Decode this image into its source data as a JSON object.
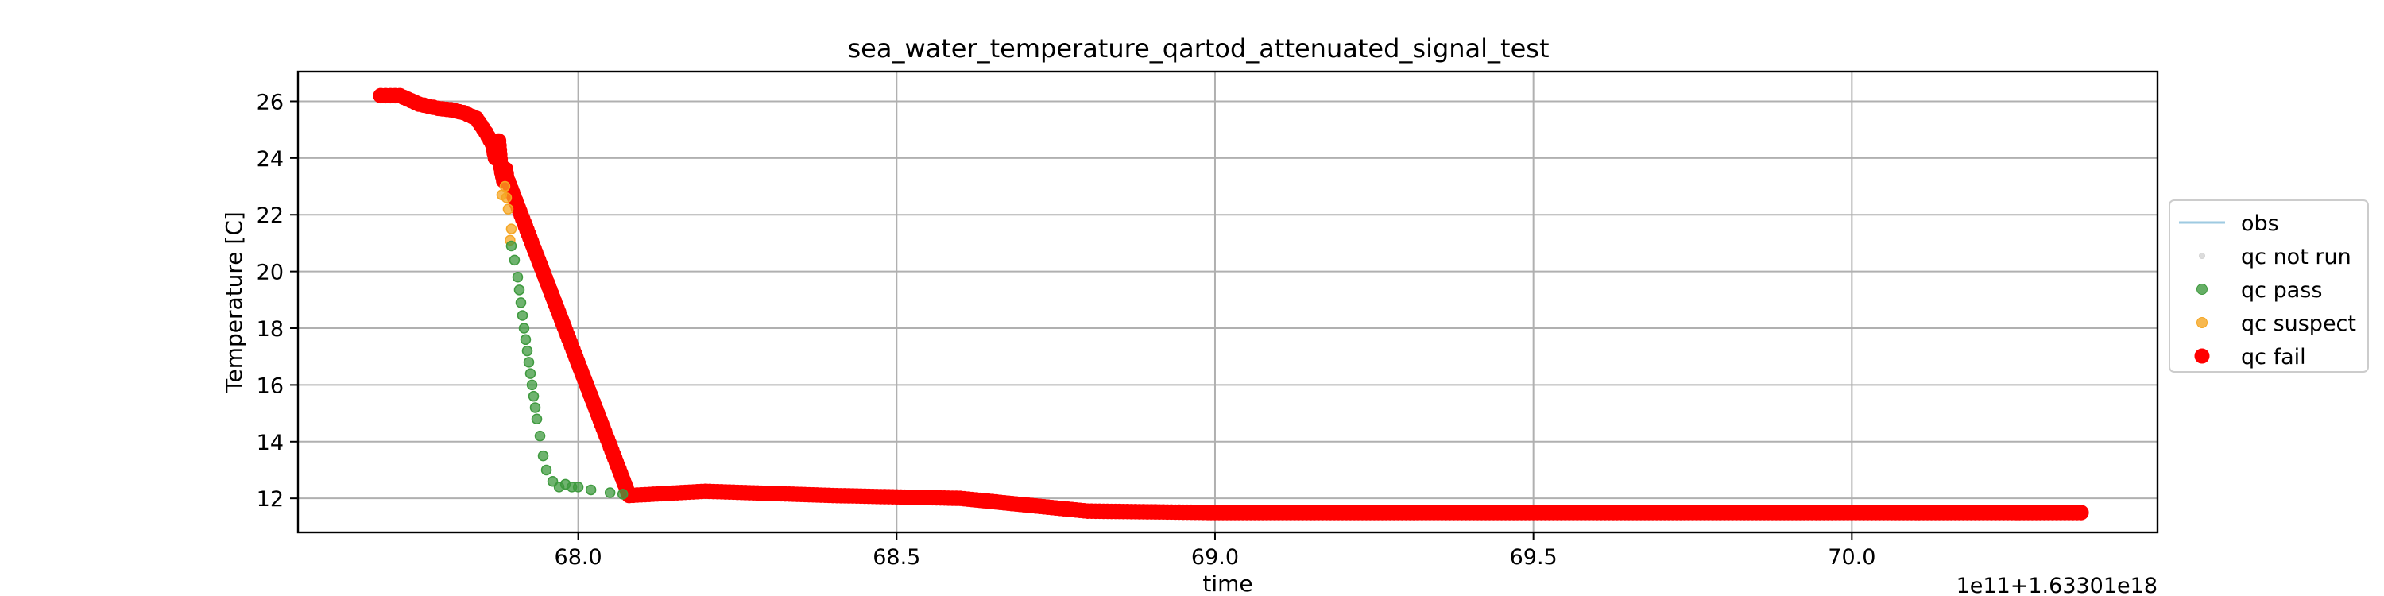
{
  "chart_data": {
    "type": "scatter",
    "title": "sea_water_temperature_qartod_attenuated_signal_test",
    "xlabel": "time",
    "ylabel": "Temperature [C]",
    "x_offset_text": "1e11+1.63301e18",
    "xlim": [
      67.56,
      70.48
    ],
    "ylim": [
      10.8,
      27.05
    ],
    "x_ticks": [
      68.0,
      68.5,
      69.0,
      69.5,
      70.0
    ],
    "x_tick_labels": [
      "68.0",
      "68.5",
      "69.0",
      "69.5",
      "70.0"
    ],
    "y_ticks": [
      12,
      14,
      16,
      18,
      20,
      22,
      24,
      26
    ],
    "y_tick_labels": [
      "12",
      "14",
      "16",
      "18",
      "20",
      "22",
      "24",
      "26"
    ],
    "grid": true,
    "legend_position": "center-right-outside",
    "legend": [
      {
        "label": "obs",
        "kind": "line",
        "color": "#9ecae1"
      },
      {
        "label": "qc not run",
        "kind": "dot-small",
        "color": "#d3d3d3"
      },
      {
        "label": "qc pass",
        "kind": "dot",
        "color": "#3f9a3f"
      },
      {
        "label": "qc suspect",
        "kind": "dot",
        "color": "#f5a623"
      },
      {
        "label": "qc fail",
        "kind": "dot-large",
        "color": "#ff0000"
      }
    ],
    "series": [
      {
        "name": "qc fail",
        "color": "#ff0000",
        "marker": "large",
        "x": [
          67.69,
          67.72,
          67.75,
          67.78,
          67.8,
          67.82,
          67.84,
          67.855,
          67.865,
          67.87,
          67.875,
          67.878,
          67.88,
          67.883,
          67.886,
          67.888,
          68.08,
          68.2,
          68.4,
          68.6,
          68.8,
          69.0,
          69.2,
          69.4,
          69.6,
          69.8,
          70.0,
          70.2,
          70.36
        ],
        "y": [
          26.2,
          26.2,
          25.9,
          25.75,
          25.7,
          25.6,
          25.4,
          24.9,
          24.5,
          24.0,
          24.6,
          23.8,
          23.5,
          23.2,
          23.6,
          23.3,
          12.1,
          12.25,
          12.1,
          12.0,
          11.55,
          11.5,
          11.5,
          11.5,
          11.5,
          11.5,
          11.5,
          11.5,
          11.5
        ]
      },
      {
        "name": "qc suspect",
        "color": "#f5a623",
        "marker": "medium",
        "x": [
          67.88,
          67.885,
          67.89,
          67.895,
          67.893
        ],
        "y": [
          22.7,
          23.0,
          22.2,
          21.5,
          21.1
        ],
        "marker_values_note": ""
      },
      {
        "name": "qc pass",
        "color": "#3f9a3f",
        "marker": "medium",
        "x": [
          67.895,
          67.9,
          67.905,
          67.91,
          67.915,
          67.92,
          67.925,
          67.93,
          67.935,
          67.94,
          67.945,
          67.95,
          67.96,
          67.97,
          67.98,
          67.99,
          68.0,
          68.02,
          68.05,
          68.07
        ],
        "y": [
          20.9,
          20.4,
          19.8,
          18.9,
          18.0,
          17.2,
          16.4,
          15.6,
          14.8,
          14.2,
          13.5,
          13.0,
          12.6,
          12.4,
          12.5,
          12.4,
          12.4,
          12.3,
          12.2,
          12.15
        ]
      }
    ]
  }
}
